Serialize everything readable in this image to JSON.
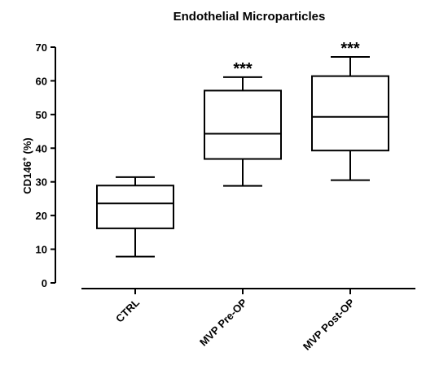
{
  "chart_data": {
    "type": "box",
    "title": "Endothelial Microparticles",
    "ylabel_main": "CD146",
    "ylabel_sup": "+",
    "ylabel_suffix": " (%)",
    "ylim": [
      0,
      70
    ],
    "yticks": [
      0,
      10,
      20,
      30,
      40,
      50,
      60,
      70
    ],
    "grid": false,
    "categories": [
      "CTRL",
      "MVP Pre-OP",
      "MVP Post-OP"
    ],
    "boxes": [
      {
        "min": 7.8,
        "q1": 16.2,
        "median": 23.6,
        "q3": 28.9,
        "max": 31.4,
        "annotation": ""
      },
      {
        "min": 28.8,
        "q1": 36.8,
        "median": 44.3,
        "q3": 57.1,
        "max": 61.1,
        "annotation": "***"
      },
      {
        "min": 30.5,
        "q1": 39.3,
        "median": 49.3,
        "q3": 61.4,
        "max": 67.1,
        "annotation": "***"
      }
    ],
    "colors": {
      "stroke": "#000000",
      "fill": "#ffffff",
      "text": "#000000"
    }
  }
}
